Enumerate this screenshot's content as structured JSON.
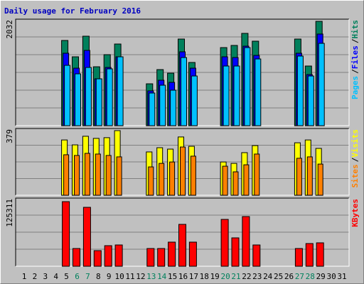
{
  "chart_data": [
    {
      "type": "bar",
      "title": "Daily usage for February 2016",
      "ylim": [
        0,
        2032
      ],
      "yticks": [
        2032
      ],
      "legend_separator": "/",
      "series": [
        {
          "name": "Hits",
          "color": "#00805c",
          "values": [
            null,
            null,
            null,
            null,
            1626,
            1314,
            1707,
            1124,
            1355,
            1558,
            null,
            null,
            799,
            1070,
            1002,
            1653,
            1206,
            null,
            null,
            1490,
            1531,
            1761,
            1612,
            null,
            null,
            null,
            1653,
            1138,
            1991,
            null,
            null
          ]
        },
        {
          "name": "Files",
          "color": "#0000ff",
          "values": [
            null,
            null,
            null,
            null,
            1382,
            1097,
            1436,
            894,
            1111,
            1314,
            null,
            null,
            664,
            867,
            826,
            1409,
            1097,
            null,
            null,
            1314,
            1300,
            1517,
            1341,
            null,
            null,
            null,
            1382,
            975,
            1748,
            null,
            null
          ]
        },
        {
          "name": "Pages",
          "color": "#00c0ff",
          "values": [
            null,
            null,
            null,
            null,
            1151,
            989,
            1111,
            894,
            1084,
            1314,
            null,
            null,
            623,
            772,
            677,
            1300,
            948,
            null,
            null,
            1138,
            1138,
            1490,
            1273,
            null,
            null,
            null,
            1328,
            948,
            1571,
            null,
            null
          ]
        }
      ]
    },
    {
      "type": "bar",
      "ylim": [
        0,
        379
      ],
      "yticks": [
        379
      ],
      "legend_separator": "/",
      "series": [
        {
          "name": "Visits",
          "color": "#ffff00",
          "values": [
            null,
            null,
            null,
            null,
            314,
            286,
            335,
            323,
            327,
            367,
            null,
            null,
            246,
            270,
            262,
            331,
            278,
            null,
            null,
            189,
            181,
            242,
            282,
            null,
            null,
            null,
            298,
            314,
            266,
            null,
            null
          ]
        },
        {
          "name": "Sites",
          "color": "#ff8000",
          "values": [
            null,
            null,
            null,
            null,
            230,
            226,
            238,
            234,
            226,
            218,
            null,
            null,
            161,
            181,
            189,
            274,
            222,
            null,
            null,
            165,
            133,
            173,
            234,
            null,
            null,
            null,
            210,
            218,
            177,
            null,
            null
          ]
        }
      ]
    },
    {
      "type": "bar",
      "ylim": [
        0,
        125311
      ],
      "yticks": [
        125311
      ],
      "categories": [
        "1",
        "2",
        "3",
        "4",
        "5",
        "6",
        "7",
        "8",
        "9",
        "10",
        "11",
        "12",
        "13",
        "14",
        "15",
        "16",
        "17",
        "18",
        "19",
        "20",
        "21",
        "22",
        "23",
        "24",
        "25",
        "26",
        "27",
        "28",
        "29",
        "30",
        "31"
      ],
      "category_colors": [
        "#000000",
        "#000000",
        "#000000",
        "#000000",
        "#000000",
        "#00805c",
        "#00805c",
        "#000000",
        "#000000",
        "#000000",
        "#000000",
        "#000000",
        "#00805c",
        "#00805c",
        "#000000",
        "#000000",
        "#000000",
        "#000000",
        "#000000",
        "#00805c",
        "#00805c",
        "#000000",
        "#000000",
        "#000000",
        "#000000",
        "#000000",
        "#00805c",
        "#00805c",
        "#000000",
        "#000000",
        "#000000"
      ],
      "series": [
        {
          "name": "KBytes",
          "color": "#ff0000",
          "values": [
            null,
            null,
            null,
            null,
            118784,
            32633,
            108343,
            28718,
            37855,
            39160,
            null,
            null,
            32633,
            32633,
            44380,
            77014,
            44380,
            null,
            null,
            86151,
            52213,
            91372,
            39160,
            null,
            null,
            null,
            32633,
            41771,
            43075,
            null,
            null
          ]
        }
      ]
    }
  ]
}
